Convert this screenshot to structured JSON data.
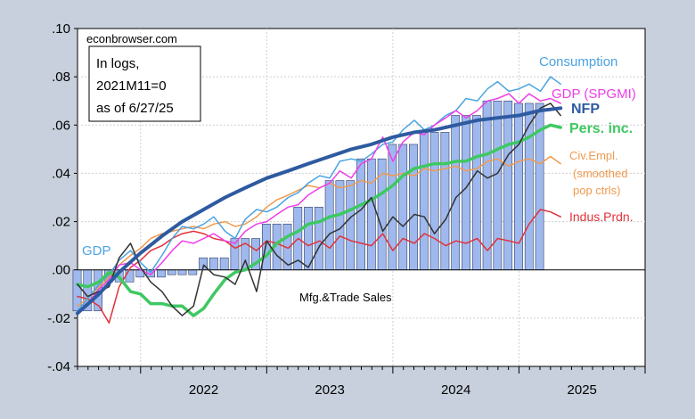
{
  "chart_data": {
    "type": "line",
    "source": "econbrowser.com",
    "note_lines": [
      "In logs,",
      "2021M11=0",
      "as of 6/27/25"
    ],
    "ylim": [
      -0.04,
      0.1
    ],
    "yticks": [
      -0.04,
      -0.02,
      0.0,
      0.02,
      0.04,
      0.06,
      0.08,
      0.1
    ],
    "ytick_labels": [
      "-.04",
      "-.02",
      ".00",
      ".02",
      ".04",
      ".06",
      ".08",
      ".10"
    ],
    "xlim": [
      2021.5,
      2026.0
    ],
    "xtick_labels": [
      {
        "label": "2022",
        "x": 2022.5
      },
      {
        "label": "2023",
        "x": 2023.5
      },
      {
        "label": "2024",
        "x": 2024.5
      },
      {
        "label": "2025",
        "x": 2025.5
      }
    ],
    "bars": {
      "name": "GDP",
      "color": "#9fb9ee",
      "x": [
        2021.58,
        2021.83,
        2022.08,
        2022.33,
        2022.58,
        2022.83,
        2023.08,
        2023.33,
        2023.58,
        2023.83,
        2024.08,
        2024.33,
        2024.58,
        2024.83,
        2025.08
      ],
      "values": [
        -0.017,
        -0.005,
        -0.003,
        -0.002,
        0.005,
        0.013,
        0.019,
        0.026,
        0.037,
        0.046,
        0.052,
        0.057,
        0.064,
        0.07,
        0.069
      ]
    },
    "series": [
      {
        "name": "Consumption",
        "color": "#4aa3e2",
        "width": 1.5,
        "x": [
          2021.5,
          2021.58,
          2021.67,
          2021.75,
          2021.83,
          2021.92,
          2022.0,
          2022.08,
          2022.17,
          2022.25,
          2022.33,
          2022.42,
          2022.5,
          2022.58,
          2022.67,
          2022.75,
          2022.83,
          2022.92,
          2023.0,
          2023.08,
          2023.17,
          2023.25,
          2023.33,
          2023.42,
          2023.5,
          2023.58,
          2023.67,
          2023.75,
          2023.83,
          2023.92,
          2024.0,
          2024.08,
          2024.17,
          2024.25,
          2024.33,
          2024.42,
          2024.5,
          2024.58,
          2024.67,
          2024.75,
          2024.83,
          2024.92,
          2025.0,
          2025.08,
          2025.17,
          2025.25,
          2025.33
        ],
        "values": [
          -0.017,
          -0.012,
          -0.006,
          -0.002,
          0.004,
          0.008,
          0.003,
          -0.001,
          0.006,
          0.013,
          0.018,
          0.017,
          0.019,
          0.022,
          0.016,
          0.013,
          0.021,
          0.025,
          0.024,
          0.026,
          0.03,
          0.032,
          0.036,
          0.039,
          0.038,
          0.045,
          0.046,
          0.045,
          0.048,
          0.052,
          0.053,
          0.058,
          0.062,
          0.058,
          0.06,
          0.064,
          0.066,
          0.071,
          0.07,
          0.075,
          0.078,
          0.074,
          0.075,
          0.077,
          0.074,
          0.08,
          0.077
        ]
      },
      {
        "name": "GDP (SPGMI)",
        "color": "#ee3ee9",
        "width": 1.5,
        "x": [
          2021.5,
          2021.58,
          2021.67,
          2021.75,
          2021.83,
          2021.92,
          2022.0,
          2022.08,
          2022.17,
          2022.25,
          2022.33,
          2022.42,
          2022.5,
          2022.58,
          2022.67,
          2022.75,
          2022.83,
          2022.92,
          2023.0,
          2023.08,
          2023.17,
          2023.25,
          2023.33,
          2023.42,
          2023.5,
          2023.58,
          2023.67,
          2023.75,
          2023.83,
          2023.92,
          2024.0,
          2024.08,
          2024.17,
          2024.25,
          2024.33,
          2024.42,
          2024.5,
          2024.58,
          2024.67,
          2024.75,
          2024.83,
          2024.92,
          2025.0,
          2025.08,
          2025.17,
          2025.25,
          2025.33
        ],
        "values": [
          -0.018,
          -0.014,
          -0.008,
          -0.004,
          0.002,
          0.003,
          0.0,
          -0.002,
          0.003,
          0.008,
          0.012,
          0.011,
          0.013,
          0.015,
          0.012,
          0.011,
          0.016,
          0.019,
          0.02,
          0.023,
          0.026,
          0.027,
          0.031,
          0.034,
          0.036,
          0.041,
          0.038,
          0.044,
          0.046,
          0.055,
          0.045,
          0.053,
          0.057,
          0.056,
          0.06,
          0.063,
          0.066,
          0.063,
          0.066,
          0.07,
          0.071,
          0.073,
          0.069,
          0.073,
          0.07,
          0.071,
          0.069
        ]
      },
      {
        "name": "NFP",
        "color": "#2e5aa0",
        "width": 4,
        "x": [
          2021.5,
          2021.67,
          2021.83,
          2022.0,
          2022.17,
          2022.33,
          2022.5,
          2022.67,
          2022.83,
          2023.0,
          2023.17,
          2023.33,
          2023.5,
          2023.67,
          2023.83,
          2024.0,
          2024.17,
          2024.33,
          2024.5,
          2024.67,
          2024.83,
          2025.0,
          2025.17,
          2025.33
        ],
        "values": [
          -0.018,
          -0.01,
          -0.001,
          0.007,
          0.014,
          0.02,
          0.025,
          0.03,
          0.034,
          0.038,
          0.041,
          0.044,
          0.047,
          0.05,
          0.052,
          0.055,
          0.057,
          0.058,
          0.06,
          0.062,
          0.063,
          0.064,
          0.066,
          0.067
        ]
      },
      {
        "name": "Pers. inc.",
        "color": "#3ec862",
        "width": 3.5,
        "x": [
          2021.5,
          2021.58,
          2021.67,
          2021.75,
          2021.83,
          2021.92,
          2022.0,
          2022.08,
          2022.17,
          2022.25,
          2022.33,
          2022.42,
          2022.5,
          2022.58,
          2022.67,
          2022.75,
          2022.83,
          2022.92,
          2023.0,
          2023.08,
          2023.17,
          2023.25,
          2023.33,
          2023.42,
          2023.5,
          2023.58,
          2023.67,
          2023.75,
          2023.83,
          2023.92,
          2024.0,
          2024.08,
          2024.17,
          2024.25,
          2024.33,
          2024.42,
          2024.5,
          2024.58,
          2024.67,
          2024.75,
          2024.83,
          2024.92,
          2025.0,
          2025.08,
          2025.17,
          2025.25,
          2025.33
        ],
        "values": [
          -0.006,
          -0.007,
          -0.005,
          -0.001,
          -0.003,
          -0.009,
          -0.01,
          -0.014,
          -0.014,
          -0.015,
          -0.015,
          -0.019,
          -0.016,
          -0.01,
          -0.004,
          -0.001,
          0.0,
          0.003,
          0.006,
          0.011,
          0.014,
          0.016,
          0.019,
          0.02,
          0.022,
          0.023,
          0.025,
          0.027,
          0.029,
          0.032,
          0.035,
          0.039,
          0.042,
          0.043,
          0.044,
          0.044,
          0.045,
          0.045,
          0.047,
          0.048,
          0.05,
          0.052,
          0.053,
          0.055,
          0.058,
          0.06,
          0.059
        ]
      },
      {
        "name": "Civ.Empl. (smoothed pop ctrls)",
        "color": "#f19a4e",
        "width": 1.5,
        "x": [
          2021.5,
          2021.58,
          2021.67,
          2021.75,
          2021.83,
          2021.92,
          2022.0,
          2022.08,
          2022.17,
          2022.25,
          2022.33,
          2022.42,
          2022.5,
          2022.58,
          2022.67,
          2022.75,
          2022.83,
          2022.92,
          2023.0,
          2023.08,
          2023.17,
          2023.25,
          2023.33,
          2023.42,
          2023.5,
          2023.58,
          2023.67,
          2023.75,
          2023.83,
          2023.92,
          2024.0,
          2024.08,
          2024.17,
          2024.25,
          2024.33,
          2024.42,
          2024.5,
          2024.58,
          2024.67,
          2024.75,
          2024.83,
          2024.92,
          2025.0,
          2025.08,
          2025.17,
          2025.25,
          2025.33
        ],
        "values": [
          -0.015,
          -0.012,
          -0.007,
          -0.003,
          0.002,
          0.006,
          0.009,
          0.013,
          0.015,
          0.016,
          0.017,
          0.018,
          0.017,
          0.019,
          0.02,
          0.018,
          0.019,
          0.022,
          0.026,
          0.029,
          0.031,
          0.033,
          0.035,
          0.034,
          0.036,
          0.034,
          0.035,
          0.037,
          0.036,
          0.04,
          0.039,
          0.04,
          0.039,
          0.042,
          0.041,
          0.042,
          0.043,
          0.041,
          0.042,
          0.045,
          0.046,
          0.043,
          0.045,
          0.046,
          0.044,
          0.047,
          0.044
        ]
      },
      {
        "name": "Indus.Prdn.",
        "color": "#e0323a",
        "width": 1.5,
        "x": [
          2021.5,
          2021.58,
          2021.67,
          2021.75,
          2021.83,
          2021.92,
          2022.0,
          2022.08,
          2022.17,
          2022.25,
          2022.33,
          2022.42,
          2022.5,
          2022.58,
          2022.67,
          2022.75,
          2022.83,
          2022.92,
          2023.0,
          2023.08,
          2023.17,
          2023.25,
          2023.33,
          2023.42,
          2023.5,
          2023.58,
          2023.67,
          2023.75,
          2023.83,
          2023.92,
          2024.0,
          2024.08,
          2024.17,
          2024.25,
          2024.33,
          2024.42,
          2024.5,
          2024.58,
          2024.67,
          2024.75,
          2024.83,
          2024.92,
          2025.0,
          2025.08,
          2025.17,
          2025.25,
          2025.33
        ],
        "values": [
          -0.011,
          -0.012,
          -0.015,
          -0.022,
          -0.007,
          0.001,
          0.004,
          0.008,
          0.01,
          0.013,
          0.015,
          0.016,
          0.015,
          0.013,
          0.012,
          0.009,
          0.011,
          0.008,
          0.012,
          0.011,
          0.009,
          0.013,
          0.01,
          0.012,
          0.009,
          0.014,
          0.012,
          0.011,
          0.01,
          0.015,
          0.008,
          0.013,
          0.011,
          0.015,
          0.013,
          0.01,
          0.012,
          0.011,
          0.013,
          0.008,
          0.013,
          0.012,
          0.011,
          0.019,
          0.025,
          0.024,
          0.022
        ]
      },
      {
        "name": "Mfg.&Trade Sales",
        "color": "#333333",
        "width": 1.5,
        "x": [
          2021.5,
          2021.58,
          2021.67,
          2021.75,
          2021.83,
          2021.92,
          2022.0,
          2022.08,
          2022.17,
          2022.25,
          2022.33,
          2022.42,
          2022.5,
          2022.58,
          2022.67,
          2022.75,
          2022.83,
          2022.92,
          2023.0,
          2023.08,
          2023.17,
          2023.25,
          2023.33,
          2023.42,
          2023.5,
          2023.58,
          2023.67,
          2023.75,
          2023.83,
          2023.92,
          2024.0,
          2024.08,
          2024.17,
          2024.25,
          2024.33,
          2024.42,
          2024.5,
          2024.58,
          2024.67,
          2024.75,
          2024.83,
          2024.92,
          2025.0,
          2025.08,
          2025.17,
          2025.25,
          2025.33
        ],
        "values": [
          -0.006,
          -0.011,
          -0.009,
          -0.007,
          0.005,
          0.011,
          0.001,
          -0.005,
          -0.009,
          -0.015,
          -0.019,
          -0.015,
          0.002,
          -0.002,
          -0.003,
          -0.006,
          0.004,
          -0.009,
          0.012,
          0.006,
          0.002,
          0.004,
          0.001,
          0.01,
          0.015,
          0.017,
          0.022,
          0.025,
          0.03,
          0.016,
          0.022,
          0.018,
          0.023,
          0.022,
          0.015,
          0.021,
          0.03,
          0.034,
          0.041,
          0.038,
          0.04,
          0.048,
          0.052,
          0.06,
          0.067,
          0.069,
          0.064
        ]
      }
    ],
    "labels": {
      "consumption": "Consumption",
      "gdp_spgmi": "GDP (SPGMI)",
      "nfp": "NFP",
      "pers_inc": "Pers. inc.",
      "civ_empl_1": "Civ.Empl.",
      "civ_empl_2": "(smoothed",
      "civ_empl_3": "pop ctrls)",
      "indus_prdn": "Indus.Prdn.",
      "gdp": "GDP",
      "mfg_trade": "Mfg.&Trade Sales"
    },
    "grid": true,
    "zero_line": true
  }
}
